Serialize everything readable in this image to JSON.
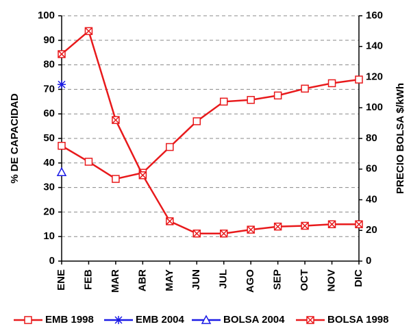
{
  "chart_data": {
    "type": "line",
    "categories": [
      "ENE",
      "FEB",
      "MAR",
      "ABR",
      "MAY",
      "JUN",
      "JUL",
      "AGO",
      "SEP",
      "OCT",
      "NOV",
      "DIC"
    ],
    "y_label": "% DE CAPACIDAD",
    "y2_label": "PRECIO BOLSA $/kWh",
    "ylim": [
      0,
      100
    ],
    "yticks": [
      0,
      10,
      20,
      30,
      40,
      50,
      60,
      70,
      80,
      90,
      100
    ],
    "y2lim": [
      0,
      160
    ],
    "y2ticks": [
      0,
      20,
      40,
      60,
      80,
      100,
      120,
      140,
      160
    ],
    "grid": true,
    "series": [
      {
        "name": "EMB 1998",
        "color": "#e8191b",
        "marker": "square",
        "values": [
          47,
          40.5,
          33.5,
          36,
          46.5,
          57,
          65,
          65.7,
          67.5,
          70.3,
          72.5,
          74
        ]
      },
      {
        "name": "EMB 2004",
        "color": "#1a1ae6",
        "marker": "star",
        "values": [
          72,
          null,
          null,
          null,
          null,
          null,
          null,
          null,
          null,
          null,
          null,
          null
        ]
      },
      {
        "name": "BOLSA 2004",
        "color": "#1a1ae6",
        "marker": "triangle",
        "axis": "y2",
        "values": [
          58,
          null,
          null,
          null,
          null,
          null,
          null,
          null,
          null,
          null,
          null,
          null
        ]
      },
      {
        "name": "BOLSA 1998",
        "color": "#e8191b",
        "marker": "xsquare",
        "axis": "y2",
        "values": [
          135,
          150,
          92,
          56,
          26,
          18,
          18,
          20.5,
          22.5,
          23,
          24,
          24
        ]
      }
    ]
  }
}
